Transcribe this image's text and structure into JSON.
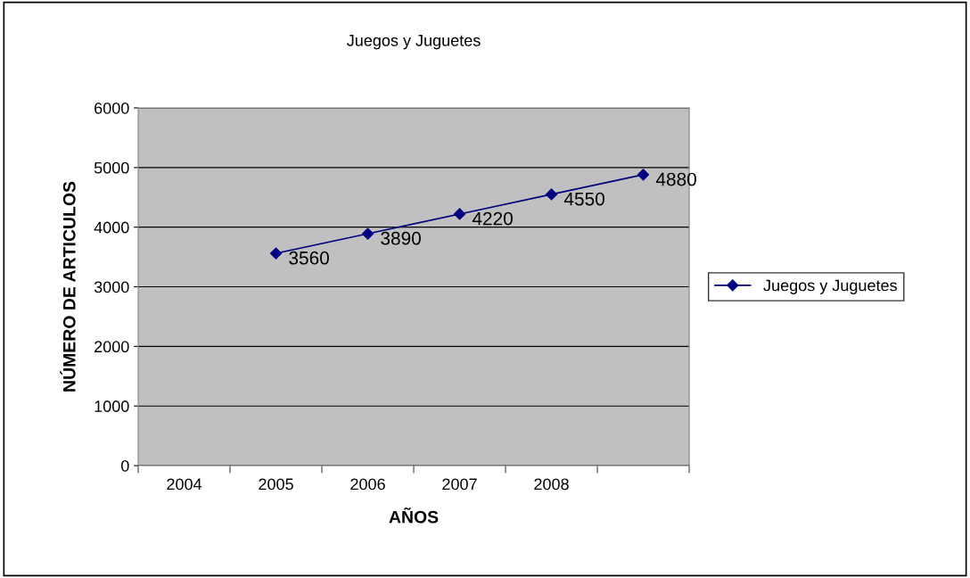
{
  "chart_data": {
    "type": "line",
    "title": "Juegos y Juguetes",
    "xlabel": "AÑOS",
    "ylabel": "NÚMERO DE ARTICULOS",
    "categories": [
      "2004",
      "2005",
      "2006",
      "2007",
      "2008",
      null
    ],
    "series": [
      {
        "name": "Juegos y Juguetes",
        "color": "#000080",
        "values": [
          null,
          3560,
          3890,
          4220,
          4550,
          4880
        ]
      }
    ],
    "ylim": [
      0,
      6000
    ],
    "yticks": [
      0,
      1000,
      2000,
      3000,
      4000,
      5000,
      6000
    ],
    "grid": "y",
    "legend": "right",
    "marker": "diamond",
    "line_style": "solid",
    "data_labels": true
  }
}
